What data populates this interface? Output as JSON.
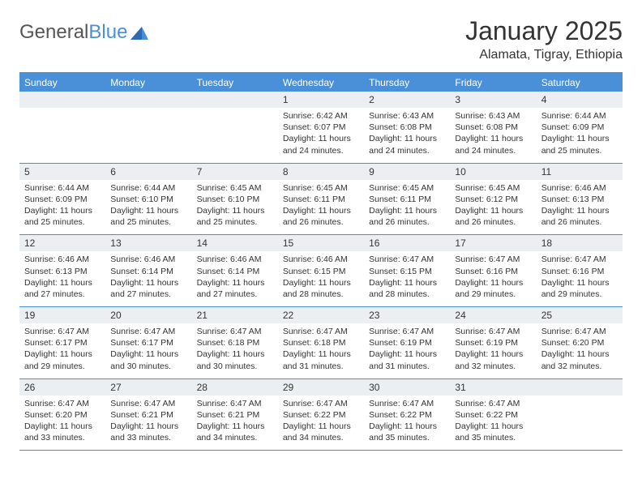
{
  "logo": {
    "part1": "General",
    "part2": "Blue"
  },
  "title": "January 2025",
  "location": "Alamata, Tigray, Ethiopia",
  "colors": {
    "accent": "#4a90d9",
    "header_bg": "#4a90d9",
    "day_num_bg": "#eceff1",
    "text": "#333333",
    "bg": "#ffffff"
  },
  "days_of_week": [
    "Sunday",
    "Monday",
    "Tuesday",
    "Wednesday",
    "Thursday",
    "Friday",
    "Saturday"
  ],
  "weeks": [
    [
      null,
      null,
      null,
      {
        "n": "1",
        "sr": "6:42 AM",
        "ss": "6:07 PM",
        "dl": "11 hours and 24 minutes."
      },
      {
        "n": "2",
        "sr": "6:43 AM",
        "ss": "6:08 PM",
        "dl": "11 hours and 24 minutes."
      },
      {
        "n": "3",
        "sr": "6:43 AM",
        "ss": "6:08 PM",
        "dl": "11 hours and 24 minutes."
      },
      {
        "n": "4",
        "sr": "6:44 AM",
        "ss": "6:09 PM",
        "dl": "11 hours and 25 minutes."
      }
    ],
    [
      {
        "n": "5",
        "sr": "6:44 AM",
        "ss": "6:09 PM",
        "dl": "11 hours and 25 minutes."
      },
      {
        "n": "6",
        "sr": "6:44 AM",
        "ss": "6:10 PM",
        "dl": "11 hours and 25 minutes."
      },
      {
        "n": "7",
        "sr": "6:45 AM",
        "ss": "6:10 PM",
        "dl": "11 hours and 25 minutes."
      },
      {
        "n": "8",
        "sr": "6:45 AM",
        "ss": "6:11 PM",
        "dl": "11 hours and 26 minutes."
      },
      {
        "n": "9",
        "sr": "6:45 AM",
        "ss": "6:11 PM",
        "dl": "11 hours and 26 minutes."
      },
      {
        "n": "10",
        "sr": "6:45 AM",
        "ss": "6:12 PM",
        "dl": "11 hours and 26 minutes."
      },
      {
        "n": "11",
        "sr": "6:46 AM",
        "ss": "6:13 PM",
        "dl": "11 hours and 26 minutes."
      }
    ],
    [
      {
        "n": "12",
        "sr": "6:46 AM",
        "ss": "6:13 PM",
        "dl": "11 hours and 27 minutes."
      },
      {
        "n": "13",
        "sr": "6:46 AM",
        "ss": "6:14 PM",
        "dl": "11 hours and 27 minutes."
      },
      {
        "n": "14",
        "sr": "6:46 AM",
        "ss": "6:14 PM",
        "dl": "11 hours and 27 minutes."
      },
      {
        "n": "15",
        "sr": "6:46 AM",
        "ss": "6:15 PM",
        "dl": "11 hours and 28 minutes."
      },
      {
        "n": "16",
        "sr": "6:47 AM",
        "ss": "6:15 PM",
        "dl": "11 hours and 28 minutes."
      },
      {
        "n": "17",
        "sr": "6:47 AM",
        "ss": "6:16 PM",
        "dl": "11 hours and 29 minutes."
      },
      {
        "n": "18",
        "sr": "6:47 AM",
        "ss": "6:16 PM",
        "dl": "11 hours and 29 minutes."
      }
    ],
    [
      {
        "n": "19",
        "sr": "6:47 AM",
        "ss": "6:17 PM",
        "dl": "11 hours and 29 minutes."
      },
      {
        "n": "20",
        "sr": "6:47 AM",
        "ss": "6:17 PM",
        "dl": "11 hours and 30 minutes."
      },
      {
        "n": "21",
        "sr": "6:47 AM",
        "ss": "6:18 PM",
        "dl": "11 hours and 30 minutes."
      },
      {
        "n": "22",
        "sr": "6:47 AM",
        "ss": "6:18 PM",
        "dl": "11 hours and 31 minutes."
      },
      {
        "n": "23",
        "sr": "6:47 AM",
        "ss": "6:19 PM",
        "dl": "11 hours and 31 minutes."
      },
      {
        "n": "24",
        "sr": "6:47 AM",
        "ss": "6:19 PM",
        "dl": "11 hours and 32 minutes."
      },
      {
        "n": "25",
        "sr": "6:47 AM",
        "ss": "6:20 PM",
        "dl": "11 hours and 32 minutes."
      }
    ],
    [
      {
        "n": "26",
        "sr": "6:47 AM",
        "ss": "6:20 PM",
        "dl": "11 hours and 33 minutes."
      },
      {
        "n": "27",
        "sr": "6:47 AM",
        "ss": "6:21 PM",
        "dl": "11 hours and 33 minutes."
      },
      {
        "n": "28",
        "sr": "6:47 AM",
        "ss": "6:21 PM",
        "dl": "11 hours and 34 minutes."
      },
      {
        "n": "29",
        "sr": "6:47 AM",
        "ss": "6:22 PM",
        "dl": "11 hours and 34 minutes."
      },
      {
        "n": "30",
        "sr": "6:47 AM",
        "ss": "6:22 PM",
        "dl": "11 hours and 35 minutes."
      },
      {
        "n": "31",
        "sr": "6:47 AM",
        "ss": "6:22 PM",
        "dl": "11 hours and 35 minutes."
      },
      null
    ]
  ],
  "labels": {
    "sunrise": "Sunrise:",
    "sunset": "Sunset:",
    "daylight": "Daylight:"
  }
}
